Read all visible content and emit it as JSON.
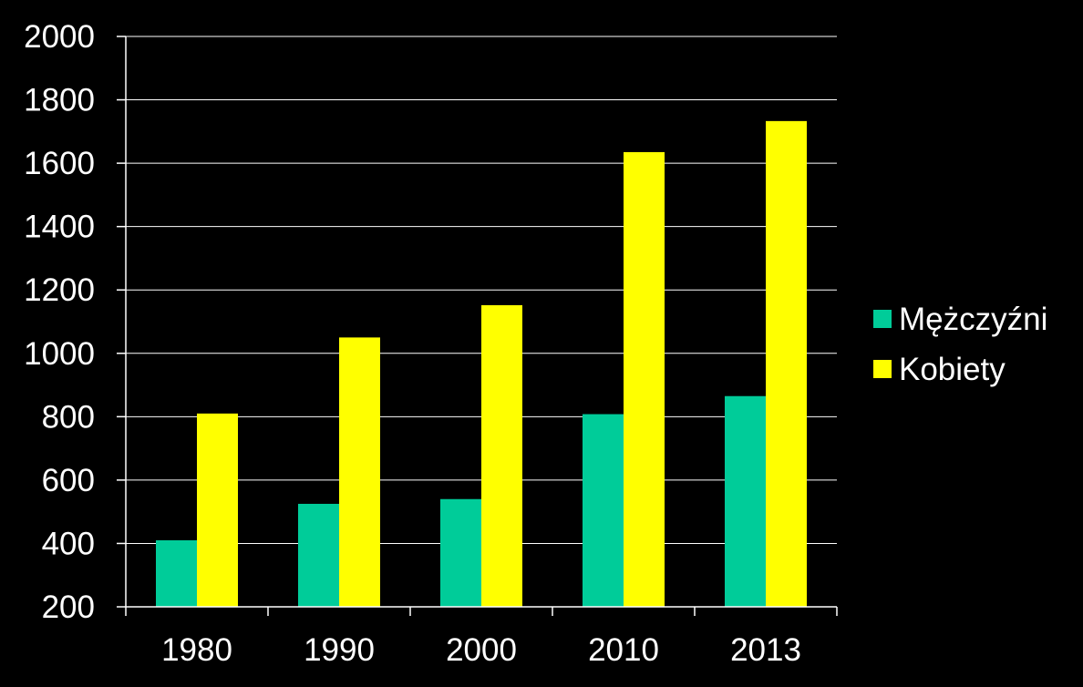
{
  "chart_data": {
    "type": "bar",
    "categories": [
      "1980",
      "1990",
      "2000",
      "2010",
      "2013"
    ],
    "series": [
      {
        "name": "Mężczyźni",
        "values": [
          410,
          525,
          540,
          808,
          865
        ],
        "color": "#00CC99"
      },
      {
        "name": "Kobiety",
        "values": [
          810,
          1050,
          1152,
          1635,
          1733
        ],
        "color": "#FFFF00"
      }
    ],
    "y_ticks": [
      "200",
      "400",
      "600",
      "800",
      "1000",
      "1200",
      "1400",
      "1600",
      "1800",
      "2000"
    ],
    "ylim": [
      200,
      2000
    ],
    "grid": true,
    "legend": "right",
    "background": "#000000",
    "axis_color": "#FFFFFF"
  }
}
